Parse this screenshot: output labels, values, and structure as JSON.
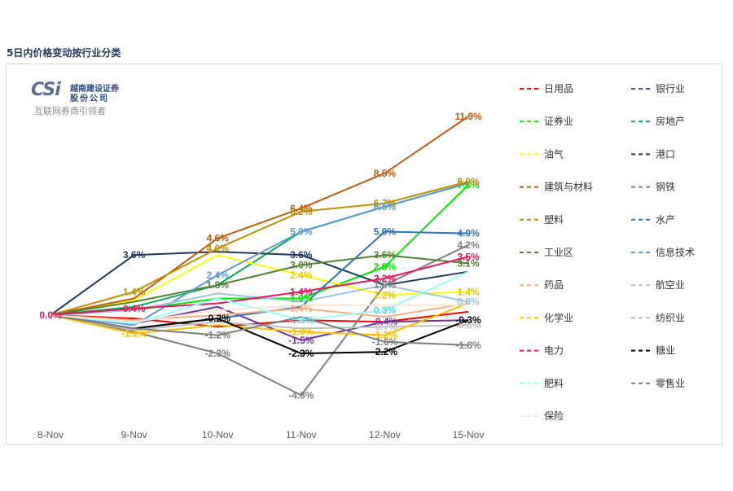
{
  "page": {
    "title": "5日内价格变动按行业分类",
    "logo": {
      "mark": "CSi",
      "name_line1": "越南建设证券",
      "name_line2": "股份公司",
      "slogan": "互联网券商引领者"
    }
  },
  "chart_data": {
    "type": "line",
    "title": "",
    "xlabel": "",
    "ylabel": "",
    "categories": [
      "8-Nov",
      "9-Nov",
      "10-Nov",
      "11-Nov",
      "12-Nov",
      "15-Nov"
    ],
    "ylim": [
      -6,
      13
    ],
    "grid": false,
    "legend_position": "right",
    "series": [
      {
        "name": "日用品",
        "color": "#ff0000",
        "dash": "dashed",
        "values": [
          0,
          -0.2,
          -0.7,
          -0.3,
          -0.4,
          0.2
        ],
        "labels": [
          "",
          "",
          "",
          "",
          "",
          ""
        ]
      },
      {
        "name": "银行业",
        "color": "#7030a0",
        "dash": "dashed",
        "values": [
          0,
          -0.5,
          0.5,
          -1.5,
          -0.4,
          -0.3
        ],
        "labels": [
          "",
          "",
          "",
          "-1.5%",
          "-0.4%",
          ""
        ]
      },
      {
        "name": "证券业",
        "color": "#00ee00",
        "dash": "dashed",
        "values": [
          0,
          0.3,
          1.0,
          1.0,
          2.9,
          7.8
        ],
        "labels": [
          "",
          "",
          "",
          "1.0%",
          "2.9%",
          "7.8%"
        ]
      },
      {
        "name": "房地产",
        "color": "#00b050",
        "dash": "dashed",
        "values": [
          0,
          0.5,
          1.8,
          5.0,
          6.5,
          7.9
        ],
        "labels": [
          "",
          "",
          "",
          "",
          "",
          ""
        ]
      },
      {
        "name": "油气",
        "color": "#ffff00",
        "dash": "dashed",
        "values": [
          0,
          0.9,
          3.6,
          2.4,
          1.2,
          1.4
        ],
        "labels": [
          "",
          "",
          "",
          "2.4%",
          "1.2%",
          "1.4%"
        ]
      },
      {
        "name": "港口",
        "color": "#1f3864",
        "dash": "dashed",
        "values": [
          0,
          3.6,
          3.8,
          3.6,
          1.8,
          2.6
        ],
        "labels": [
          "",
          "3.6%",
          "",
          "3.6%",
          "",
          ""
        ]
      },
      {
        "name": "建筑与材料",
        "color": "#c55a11",
        "dash": "dashed",
        "values": [
          0,
          1.0,
          4.6,
          6.4,
          8.5,
          11.9
        ],
        "labels": [
          "",
          "",
          "4.6%",
          "6.4%",
          "8.5%",
          "11.9%"
        ]
      },
      {
        "name": "钢铁",
        "color": "#808080",
        "dash": "dashed",
        "values": [
          0,
          -1.0,
          -2.3,
          -4.8,
          1.8,
          4.2
        ],
        "labels": [
          "",
          "",
          "-2.3%",
          "-4.8%",
          "1.8%",
          "4.2%"
        ]
      },
      {
        "name": "塑料",
        "color": "#bf8f00",
        "dash": "dashed",
        "values": [
          0,
          1.4,
          4.0,
          6.2,
          6.7,
          8.0
        ],
        "labels": [
          "",
          "1.4%",
          "4.0%",
          "6.2%",
          "6.7%",
          "8.0%"
        ]
      },
      {
        "name": "水产",
        "color": "#2e75b6",
        "dash": "dashed",
        "values": [
          0,
          -0.8,
          -0.2,
          0.5,
          5.0,
          4.9
        ],
        "labels": [
          "",
          "",
          "",
          "",
          "5.0%",
          "4.9%"
        ]
      },
      {
        "name": "工业区",
        "color": "#548235",
        "dash": "dashed",
        "values": [
          0,
          0.8,
          1.8,
          3.0,
          3.6,
          3.1
        ],
        "labels": [
          "",
          "",
          "1.8%",
          "3.0%",
          "3.6%",
          "3.1%"
        ]
      },
      {
        "name": "信息技术",
        "color": "#5b9bd5",
        "dash": "dashed",
        "values": [
          0,
          -0.6,
          2.4,
          5.0,
          6.5,
          7.9
        ],
        "labels": [
          "",
          "",
          "2.4%",
          "5.0%",
          "6.5%",
          ""
        ]
      },
      {
        "name": "药品",
        "color": "#f4b183",
        "dash": "dashed",
        "values": [
          0,
          -0.3,
          0.0,
          0.4,
          -0.1,
          0.7
        ],
        "labels": [
          "",
          "",
          "",
          "0.4%",
          "",
          ""
        ]
      },
      {
        "name": "航空业",
        "color": "#bfbfbf",
        "dash": "dashed",
        "values": [
          0,
          -0.9,
          -0.4,
          -0.8,
          -0.7,
          -0.6
        ],
        "labels": [
          "",
          "",
          "",
          "",
          "-0.7%",
          "-0.6%"
        ]
      },
      {
        "name": "化学业",
        "color": "#ffc000",
        "dash": "dashed",
        "values": [
          0,
          -1.1,
          -0.6,
          -1.0,
          -1.2,
          0.7
        ],
        "labels": [
          "",
          "-1.1%",
          "",
          "-1.0%",
          "-1.2%",
          ""
        ]
      },
      {
        "name": "纺织业",
        "color": "#9dc3e6",
        "dash": "dashed",
        "values": [
          0,
          0.3,
          1.3,
          0.8,
          1.8,
          0.8
        ],
        "labels": [
          "",
          "",
          "",
          "",
          "",
          "0.8%"
        ]
      },
      {
        "name": "电力",
        "color": "#e8175d",
        "dash": "dashed",
        "values": [
          0,
          0.4,
          0.7,
          1.4,
          2.2,
          3.5
        ],
        "labels": [
          "0.0%",
          "0.4%",
          "",
          "1.4%",
          "2.2%",
          "3.5%"
        ]
      },
      {
        "name": "糖业",
        "color": "#000000",
        "dash": "dashed",
        "values": [
          0,
          -0.8,
          -0.2,
          -2.3,
          -2.2,
          -0.3
        ],
        "labels": [
          "",
          "",
          "-0.2%",
          "-2.3%",
          "-2.2%",
          "-0.3%"
        ]
      },
      {
        "name": "肥料",
        "color": "#99ffff",
        "dash": "dashed",
        "values": [
          0,
          -0.5,
          1.0,
          -0.3,
          0.3,
          2.6
        ],
        "labels": [
          "",
          "",
          "",
          "-0.3%",
          "0.3%",
          ""
        ]
      },
      {
        "name": "零售业",
        "color": "#7f7f7f",
        "dash": "dashed",
        "values": [
          0,
          -0.8,
          -1.2,
          -0.1,
          -1.6,
          -1.8
        ],
        "labels": [
          "",
          "",
          "-1.2%",
          "",
          "-1.6%",
          "-1.8%"
        ]
      },
      {
        "name": "保险",
        "color": "#fbe5d6",
        "dash": "dashed",
        "values": [
          0,
          -0.4,
          0.3,
          0.6,
          0.6,
          0.6
        ],
        "labels": [
          "",
          "",
          "",
          "",
          "",
          ""
        ]
      }
    ]
  }
}
